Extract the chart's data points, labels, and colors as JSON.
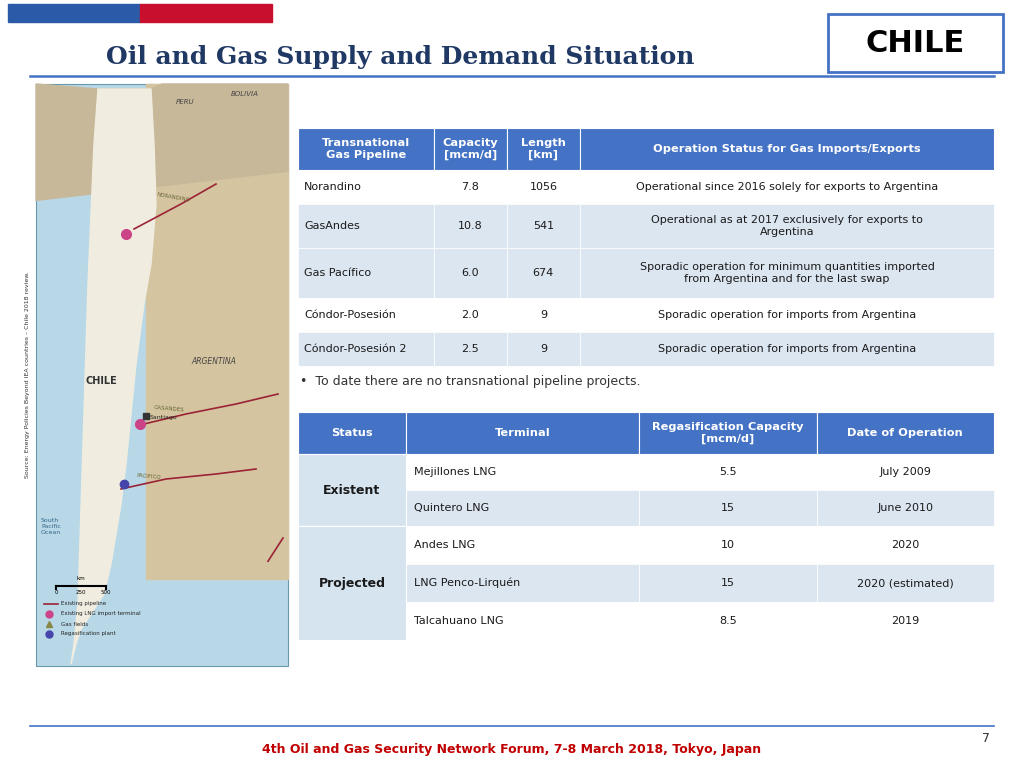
{
  "title": "Oil and Gas Supply and Demand Situation",
  "country": "CHILE",
  "flag_blue": "#2B5BA8",
  "flag_red": "#C8102E",
  "header_bg": "#4472C4",
  "header_text_color": "#FFFFFF",
  "row_alt_color": "#DCE6F1",
  "row_white": "#FFFFFF",
  "status_col_bg": "#D6E4F0",
  "separator_color": "#4472C4",
  "title_color": "#1F3864",
  "table1_headers": [
    "Transnational\nGas Pipeline",
    "Capacity\n[mcm/d]",
    "Length\n[km]",
    "Operation Status for Gas Imports/Exports"
  ],
  "table1_col_props": [
    0.195,
    0.105,
    0.105,
    0.595
  ],
  "table1_data": [
    [
      "Norandino",
      "7.8",
      "1056",
      "Operational since 2016 solely for exports to Argentina"
    ],
    [
      "GasAndes",
      "10.8",
      "541",
      "Operational as at 2017 exclusively for exports to\nArgentina"
    ],
    [
      "Gas Pacífico",
      "6.0",
      "674",
      "Sporadic operation for minimum quantities imported\nfrom Argentina and for the last swap"
    ],
    [
      "Cóndor-Posesión",
      "2.0",
      "9",
      "Sporadic operation for imports from Argentina"
    ],
    [
      "Cóndor-Posesión 2",
      "2.5",
      "9",
      "Sporadic operation for imports from Argentina"
    ]
  ],
  "table1_row_heights": [
    34,
    44,
    50,
    34,
    34
  ],
  "table1_row_bgs": [
    "#FFFFFF",
    "#DCE6F1",
    "#DCE6F1",
    "#FFFFFF",
    "#DCE6F1"
  ],
  "bullet_text": "•  To date there are no transnational pipeline projects.",
  "table2_headers": [
    "Status",
    "Terminal",
    "Regasification Capacity\n[mcm/d]",
    "Date of Operation"
  ],
  "table2_col_props": [
    0.155,
    0.335,
    0.255,
    0.255
  ],
  "table2_data": [
    [
      "Existent",
      "Mejillones LNG",
      "5.5",
      "July 2009"
    ],
    [
      "Existent",
      "Quintero LNG",
      "15",
      "June 2010"
    ],
    [
      "Projected",
      "Andes LNG",
      "10",
      "2020"
    ],
    [
      "Projected",
      "LNG Penco-Lirquén",
      "15",
      "2020 (estimated)"
    ],
    [
      "Projected",
      "Talcahuano LNG",
      "8.5",
      "2019"
    ]
  ],
  "table2_row_heights": [
    36,
    36,
    38,
    38,
    38
  ],
  "table2_row_bgs": [
    "#FFFFFF",
    "#DCE6F1",
    "#FFFFFF",
    "#DCE6F1",
    "#FFFFFF"
  ],
  "footer_text": "4th Oil and Gas Security Network Forum, 7-8 March 2018, Tokyo, Japan",
  "page_number": "7",
  "source_text": "Source: Energy Policies Beyond IEA countries – Chile 2018 review."
}
